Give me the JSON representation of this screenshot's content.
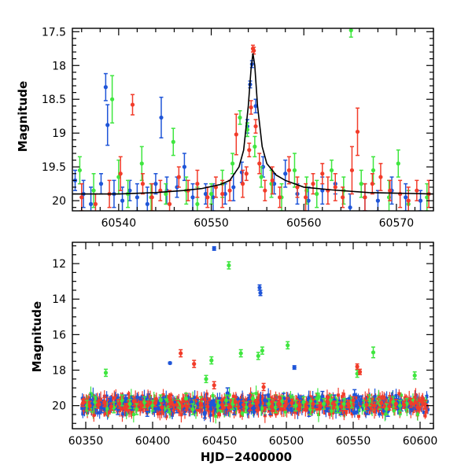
{
  "chart_data": [
    {
      "type": "scatter",
      "panel": "top",
      "title": "",
      "xlabel": "",
      "ylabel": "Magnitude",
      "xlim": [
        60535,
        60574
      ],
      "ylim": [
        20.15,
        17.45
      ],
      "y_inverted": true,
      "grid": false,
      "xticks": [
        60540,
        60550,
        60560,
        60570
      ],
      "xtick_labels": [
        "60540",
        "60550",
        "60560",
        "60570"
      ],
      "yticks": [
        17.5,
        18,
        18.5,
        19,
        19.5,
        20
      ],
      "ytick_labels": [
        "17.5",
        "18",
        "18.5",
        "19",
        "19.5",
        "20"
      ],
      "series": [
        {
          "color": "#1f55d8",
          "x": [
            60535.3,
            60536.2,
            60537.0,
            60538.1,
            60538.6,
            60538.8,
            60539.5,
            60540.4,
            60541.2,
            60542.0,
            60543.1,
            60544.0,
            60544.6,
            60545.2,
            60546.3,
            60547.1,
            60548.0,
            60549.4,
            60550.2,
            60551.5,
            60552.4,
            60553.3,
            60553.9,
            60554.2,
            60554.4,
            60554.8,
            60555.6,
            60556.8,
            60558.0,
            60559.3,
            60560.5,
            60562.0,
            60563.4,
            60565.0,
            60566.6,
            60568.0,
            60569.5,
            60571.0,
            60572.6
          ],
          "y": [
            19.7,
            19.9,
            20.05,
            19.75,
            18.32,
            18.88,
            19.9,
            20.0,
            19.85,
            19.95,
            20.05,
            19.75,
            18.77,
            19.85,
            19.8,
            19.5,
            19.95,
            19.9,
            19.95,
            19.9,
            19.8,
            19.58,
            18.9,
            18.28,
            17.98,
            18.6,
            19.5,
            19.75,
            19.6,
            19.9,
            20.0,
            19.85,
            19.75,
            20.1,
            19.95,
            20.0,
            19.85,
            19.95,
            20.0
          ],
          "err": [
            0.15,
            0.2,
            0.25,
            0.15,
            0.2,
            0.3,
            0.2,
            0.2,
            0.15,
            0.2,
            0.25,
            0.15,
            0.3,
            0.2,
            0.15,
            0.2,
            0.2,
            0.15,
            0.2,
            0.15,
            0.2,
            0.15,
            0.1,
            0.05,
            0.05,
            0.1,
            0.15,
            0.15,
            0.2,
            0.15,
            0.2,
            0.2,
            0.15,
            0.2,
            0.2,
            0.15,
            0.2,
            0.2,
            0.15
          ]
        },
        {
          "color": "#3fe63f",
          "x": [
            60535.8,
            60537.3,
            60539.3,
            60540.0,
            60541.0,
            60542.5,
            60543.5,
            60545.1,
            60545.9,
            60547.3,
            60548.5,
            60550.0,
            60551.2,
            60552.3,
            60553.1,
            60553.9,
            60554.7,
            60555.4,
            60556.5,
            60557.6,
            60559.0,
            60560.3,
            60561.4,
            60563.0,
            60564.3,
            60565.1,
            60566.2,
            60567.5,
            60569.2,
            60570.2,
            60571.3,
            60573.3
          ],
          "y": [
            19.55,
            19.85,
            18.5,
            19.65,
            19.9,
            19.45,
            19.95,
            19.9,
            19.13,
            19.85,
            20.05,
            19.9,
            19.75,
            19.45,
            18.77,
            18.95,
            19.2,
            19.65,
            19.75,
            19.95,
            19.55,
            19.85,
            19.9,
            19.55,
            19.85,
            17.48,
            19.75,
            19.55,
            19.95,
            19.45,
            20.05,
            19.95
          ],
          "err": [
            0.2,
            0.25,
            0.35,
            0.25,
            0.2,
            0.25,
            0.2,
            0.15,
            0.2,
            0.2,
            0.25,
            0.15,
            0.2,
            0.15,
            0.1,
            0.1,
            0.15,
            0.15,
            0.2,
            0.2,
            0.25,
            0.2,
            0.2,
            0.15,
            0.2,
            0.1,
            0.2,
            0.2,
            0.25,
            0.2,
            0.2,
            0.2
          ]
        },
        {
          "color": "#f23c2a",
          "x": [
            60536.0,
            60537.5,
            60539.0,
            60540.2,
            60541.5,
            60542.6,
            60543.6,
            60544.5,
            60545.5,
            60546.5,
            60547.5,
            60548.5,
            60549.6,
            60550.5,
            60551.2,
            60552.0,
            60552.7,
            60553.4,
            60553.8,
            60554.1,
            60554.3,
            60554.5,
            60554.6,
            60554.8,
            60555.2,
            60555.8,
            60556.6,
            60557.4,
            60558.4,
            60559.3,
            60560.2,
            60561.0,
            60562.0,
            60562.6,
            60563.4,
            60564.2,
            60565.2,
            60565.8,
            60566.6,
            60567.4,
            60568.3,
            60569.3,
            60570.4,
            60571.3,
            60572.2,
            60573.5
          ],
          "y": [
            19.95,
            20.05,
            19.9,
            19.6,
            18.58,
            19.75,
            19.95,
            19.85,
            20.05,
            19.65,
            19.85,
            19.75,
            19.95,
            19.8,
            19.9,
            19.85,
            19.02,
            19.75,
            19.6,
            19.25,
            18.62,
            17.75,
            17.78,
            18.9,
            19.45,
            19.85,
            19.7,
            19.95,
            19.55,
            19.8,
            19.95,
            19.75,
            19.6,
            19.85,
            19.8,
            19.95,
            19.55,
            18.98,
            19.95,
            19.75,
            19.65,
            19.85,
            19.9,
            20.0,
            19.85,
            19.9
          ],
          "err": [
            0.2,
            0.15,
            0.2,
            0.25,
            0.15,
            0.15,
            0.2,
            0.15,
            0.2,
            0.15,
            0.15,
            0.2,
            0.15,
            0.15,
            0.2,
            0.15,
            0.3,
            0.2,
            0.1,
            0.1,
            0.1,
            0.05,
            0.05,
            0.1,
            0.15,
            0.15,
            0.2,
            0.15,
            0.2,
            0.15,
            0.2,
            0.15,
            0.15,
            0.2,
            0.2,
            0.15,
            0.35,
            0.35,
            0.2,
            0.15,
            0.2,
            0.15,
            0.2,
            0.2,
            0.15,
            0.2
          ]
        }
      ],
      "model_curve": {
        "color": "#000000",
        "x": [
          60535,
          60540,
          60544,
          60547,
          60549,
          60551,
          60552,
          60553,
          60553.5,
          60554,
          60554.3,
          60554.5,
          60554.7,
          60555,
          60555.5,
          60556,
          60557,
          60558,
          60560,
          60563,
          60567,
          60574
        ],
        "y": [
          19.9,
          19.9,
          19.88,
          19.85,
          19.82,
          19.76,
          19.7,
          19.5,
          19.25,
          18.6,
          18.05,
          17.82,
          18.0,
          18.6,
          19.2,
          19.45,
          19.62,
          19.7,
          19.8,
          19.84,
          19.88,
          19.9
        ]
      }
    },
    {
      "type": "scatter",
      "panel": "bottom",
      "title": "",
      "xlabel": "HJD−2400000",
      "ylabel": "Magnitude",
      "xlim": [
        60340,
        60610
      ],
      "ylim": [
        21.3,
        10.8
      ],
      "y_inverted": true,
      "grid": false,
      "xticks": [
        60350,
        60400,
        60450,
        60500,
        60550,
        60600
      ],
      "xtick_labels": [
        "60350",
        "60400",
        "60450",
        "60500",
        "60550",
        "60600"
      ],
      "yticks": [
        12,
        14,
        16,
        18,
        20
      ],
      "ytick_labels": [
        "12",
        "14",
        "16",
        "18",
        "20"
      ],
      "series": [
        {
          "color": "#1f55d8",
          "x": [
            60355,
            60362,
            60368,
            60374,
            60380,
            60385,
            60391,
            60396,
            60402,
            60408,
            60413,
            60418,
            60424,
            60429,
            60434,
            60439,
            60443,
            60446,
            60450,
            60456,
            60461,
            60466,
            60472,
            60476,
            60480,
            60480.6,
            60484,
            60488,
            60493,
            60498,
            60503,
            60506,
            60511,
            60517,
            60522,
            60527,
            60531,
            60536,
            60541,
            60545,
            60551,
            60556,
            60561,
            60566,
            60571,
            60576,
            60581,
            60586,
            60590
          ],
          "y": [
            19.9,
            20.1,
            19.8,
            20.2,
            19.6,
            20.0,
            19.7,
            20.3,
            19.9,
            19.75,
            17.6,
            20.1,
            20.2,
            19.8,
            19.9,
            20.4,
            20.0,
            11.15,
            19.85,
            19.3,
            20.2,
            19.9,
            19.7,
            20.1,
            13.35,
            13.65,
            19.7,
            20.2,
            19.95,
            19.6,
            20.0,
            17.85,
            19.7,
            20.3,
            19.8,
            19.5,
            20.1,
            19.7,
            20.2,
            19.9,
            19.4,
            19.7,
            20.2,
            19.8,
            19.95,
            20.3,
            19.7,
            20.0,
            19.85
          ],
          "err": [
            0.2,
            0.3,
            0.2,
            0.3,
            0.2,
            0.25,
            0.2,
            0.3,
            0.25,
            0.2,
            0.05,
            0.3,
            0.3,
            0.2,
            0.25,
            0.3,
            0.2,
            0.1,
            0.3,
            0.3,
            0.3,
            0.25,
            0.3,
            0.25,
            0.15,
            0.15,
            0.3,
            0.3,
            0.25,
            0.3,
            0.3,
            0.1,
            0.25,
            0.3,
            0.3,
            0.3,
            0.25,
            0.3,
            0.3,
            0.3,
            0.3,
            0.25,
            0.3,
            0.3,
            0.25,
            0.3,
            0.25,
            0.3,
            0.25
          ]
        },
        {
          "color": "#3fe63f",
          "x": [
            60351,
            60357,
            60365,
            60371,
            60377,
            60383,
            60388,
            60394,
            60400,
            60406,
            60412,
            60419,
            60425,
            60430,
            60436,
            60440,
            60444,
            60449,
            60455,
            60457,
            60460,
            60466,
            60470,
            60475,
            60479,
            60482,
            60487,
            60492,
            60497,
            60501,
            60507,
            60513,
            60518,
            60523,
            60528,
            60533,
            60538,
            60543,
            60549,
            60553,
            60558,
            60562,
            60565,
            60570,
            60575,
            60580,
            60585,
            60590,
            60596
          ],
          "y": [
            20.0,
            19.8,
            18.15,
            20.1,
            19.7,
            19.9,
            20.2,
            19.8,
            20.0,
            19.7,
            20.1,
            19.9,
            19.6,
            20.2,
            19.8,
            18.5,
            17.45,
            20.0,
            19.7,
            12.1,
            19.9,
            17.05,
            20.1,
            19.6,
            17.2,
            16.9,
            19.9,
            20.1,
            19.75,
            16.6,
            20.0,
            19.8,
            20.2,
            19.6,
            19.9,
            19.7,
            20.1,
            19.9,
            19.8,
            18.2,
            20.0,
            19.7,
            17.0,
            19.9,
            20.2,
            19.8,
            20.0,
            19.9,
            18.3
          ],
          "err": [
            0.3,
            0.3,
            0.2,
            0.3,
            0.3,
            0.25,
            0.3,
            0.3,
            0.3,
            0.3,
            0.3,
            0.25,
            0.3,
            0.3,
            0.3,
            0.2,
            0.2,
            0.3,
            0.3,
            0.2,
            0.3,
            0.2,
            0.3,
            0.3,
            0.2,
            0.2,
            0.3,
            0.3,
            0.3,
            0.2,
            0.3,
            0.3,
            0.3,
            0.3,
            0.3,
            0.3,
            0.3,
            0.3,
            0.3,
            0.2,
            0.3,
            0.3,
            0.3,
            0.3,
            0.3,
            0.3,
            0.3,
            0.3,
            0.2
          ]
        },
        {
          "color": "#f23c2a",
          "x": [
            60348,
            60353,
            60359,
            60364,
            60369,
            60375,
            60380,
            60386,
            60391,
            60396,
            60402,
            60407,
            60413,
            60418,
            60421,
            60425,
            60431,
            60436,
            60441,
            60446,
            60452,
            60457,
            60462,
            60468,
            60473,
            60478,
            60483,
            60489,
            60494,
            60499,
            60504,
            60510,
            60515,
            60520,
            60525,
            60531,
            60536,
            60541,
            60546,
            60550,
            60553,
            60555,
            60560,
            60566,
            60571,
            60577,
            60582,
            60588,
            60593,
            60598,
            60604
          ],
          "y": [
            19.85,
            20.0,
            19.95,
            19.8,
            20.05,
            19.9,
            20.1,
            19.75,
            19.95,
            20.0,
            19.85,
            20.1,
            19.9,
            19.95,
            17.05,
            20.0,
            17.65,
            19.9,
            20.05,
            18.85,
            19.95,
            20.1,
            19.8,
            19.95,
            20.0,
            19.85,
            18.95,
            20.05,
            19.9,
            20.0,
            19.85,
            19.95,
            20.1,
            19.9,
            20.0,
            19.8,
            19.95,
            20.05,
            19.9,
            19.7,
            17.8,
            18.1,
            19.95,
            20.0,
            19.85,
            20.05,
            19.9,
            19.95,
            19.85,
            20.1,
            19.95
          ],
          "err": [
            0.2,
            0.25,
            0.2,
            0.25,
            0.2,
            0.25,
            0.2,
            0.25,
            0.2,
            0.25,
            0.2,
            0.25,
            0.2,
            0.25,
            0.2,
            0.25,
            0.2,
            0.25,
            0.2,
            0.2,
            0.25,
            0.2,
            0.25,
            0.2,
            0.25,
            0.2,
            0.2,
            0.25,
            0.2,
            0.25,
            0.2,
            0.25,
            0.2,
            0.25,
            0.2,
            0.25,
            0.2,
            0.25,
            0.2,
            0.2,
            0.15,
            0.15,
            0.25,
            0.2,
            0.25,
            0.2,
            0.25,
            0.2,
            0.25,
            0.2,
            0.25
          ]
        }
      ],
      "baseline_band": {
        "x_range": [
          60347,
          60606
        ],
        "center": 19.95,
        "spread": 0.3
      }
    }
  ]
}
